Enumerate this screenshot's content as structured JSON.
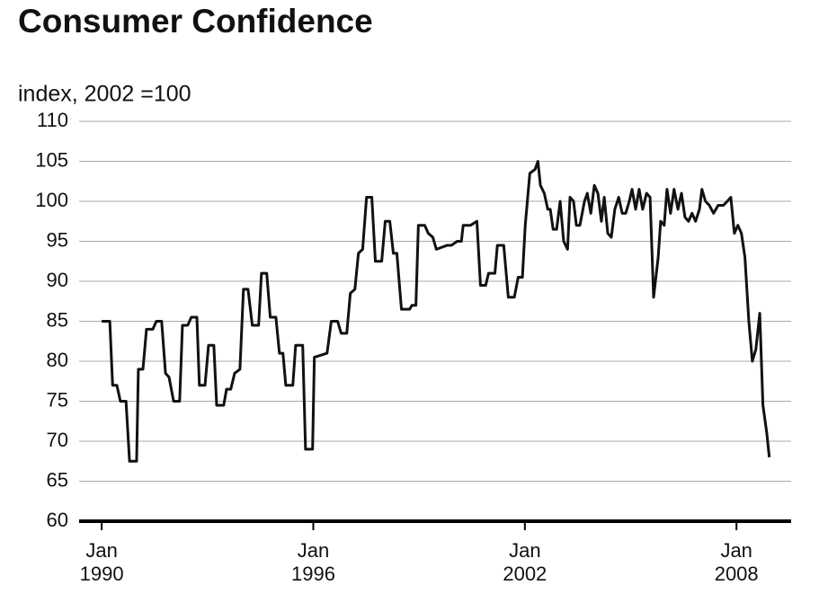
{
  "chart_data": {
    "type": "line",
    "title": "Consumer Confidence",
    "y_label": "index, 2002 =100",
    "color": "#111111",
    "grid": true,
    "xlim": [
      1989.36,
      2009.55
    ],
    "ylim": [
      60,
      110
    ],
    "yticks": [
      60,
      65,
      70,
      75,
      80,
      85,
      90,
      95,
      100,
      105,
      110
    ],
    "xticks": [
      {
        "value": 1990,
        "label": "Jan 1990"
      },
      {
        "value": 1996,
        "label": "Jan 1996"
      },
      {
        "value": 2002,
        "label": "Jan 2002"
      },
      {
        "value": 2008,
        "label": "Jan 2008"
      }
    ],
    "x": [
      1990.0,
      1990.23,
      1990.31,
      1990.43,
      1990.53,
      1990.69,
      1990.79,
      1990.99,
      1991.04,
      1991.17,
      1991.27,
      1991.45,
      1991.55,
      1991.7,
      1991.81,
      1991.91,
      1992.04,
      1992.21,
      1992.29,
      1992.44,
      1992.54,
      1992.7,
      1992.77,
      1992.93,
      1993.03,
      1993.18,
      1993.26,
      1993.46,
      1993.54,
      1993.66,
      1993.77,
      1993.92,
      1994.02,
      1994.15,
      1994.27,
      1994.45,
      1994.53,
      1994.68,
      1994.78,
      1994.94,
      1995.04,
      1995.14,
      1995.22,
      1995.42,
      1995.5,
      1995.7,
      1995.78,
      1995.98,
      1996.03,
      1996.39,
      1996.51,
      1996.69,
      1996.79,
      1996.95,
      1997.05,
      1997.18,
      1997.28,
      1997.4,
      1997.51,
      1997.66,
      1997.76,
      1997.94,
      1998.04,
      1998.17,
      1998.27,
      1998.37,
      1998.5,
      1998.73,
      1998.8,
      1998.91,
      1998.98,
      1999.16,
      1999.26,
      1999.39,
      1999.49,
      1999.8,
      1999.92,
      2000.08,
      2000.2,
      2000.25,
      2000.46,
      2000.64,
      2000.74,
      2000.89,
      2000.97,
      2001.15,
      2001.22,
      2001.4,
      2001.53,
      2001.7,
      2001.81,
      2001.93,
      2002.01,
      2002.14,
      2002.29,
      2002.37,
      2002.44,
      2002.55,
      2002.65,
      2002.72,
      2002.8,
      2002.9,
      2003.0,
      2003.1,
      2003.21,
      2003.28,
      2003.38,
      2003.46,
      2003.56,
      2003.69,
      2003.77,
      2003.87,
      2003.97,
      2004.07,
      2004.17,
      2004.25,
      2004.35,
      2004.45,
      2004.55,
      2004.66,
      2004.76,
      2004.86,
      2004.96,
      2005.04,
      2005.14,
      2005.24,
      2005.34,
      2005.45,
      2005.55,
      2005.65,
      2005.78,
      2005.85,
      2005.95,
      2006.03,
      2006.13,
      2006.23,
      2006.34,
      2006.44,
      2006.54,
      2006.64,
      2006.74,
      2006.84,
      2006.95,
      2007.02,
      2007.12,
      2007.23,
      2007.35,
      2007.48,
      2007.63,
      2007.74,
      2007.84,
      2007.94,
      2008.04,
      2008.14,
      2008.24,
      2008.35,
      2008.45,
      2008.55,
      2008.66,
      2008.75,
      2008.86,
      2008.93
    ],
    "values": [
      85,
      85,
      77,
      77,
      75,
      75,
      67.5,
      67.5,
      79,
      79,
      84,
      84,
      85,
      85,
      78.5,
      78,
      75,
      75,
      84.5,
      84.5,
      85.5,
      85.5,
      77,
      77,
      82,
      82,
      74.5,
      74.5,
      76.5,
      76.5,
      78.5,
      79,
      89,
      89,
      84.5,
      84.5,
      91,
      91,
      85.5,
      85.5,
      81,
      81,
      77,
      77,
      82,
      82,
      69,
      69,
      80.5,
      81,
      85,
      85,
      83.5,
      83.5,
      88.5,
      89,
      93.5,
      94,
      100.5,
      100.5,
      92.5,
      92.5,
      97.5,
      97.5,
      93.5,
      93.5,
      86.5,
      86.5,
      87,
      87,
      97,
      97,
      96,
      95.5,
      94,
      94.5,
      94.5,
      95,
      95,
      97,
      97,
      97.5,
      89.5,
      89.5,
      91,
      91,
      94.5,
      94.5,
      88,
      88,
      90.5,
      90.5,
      97,
      103.5,
      104,
      105,
      102,
      101,
      99,
      99,
      96.5,
      96.5,
      100,
      95,
      94,
      100.5,
      100,
      97,
      97,
      100,
      101,
      98.5,
      102,
      101,
      97.5,
      100.5,
      96,
      95.5,
      99,
      100.5,
      98.5,
      98.5,
      100,
      101.5,
      99,
      101.5,
      99,
      101,
      100.5,
      88,
      93,
      97.5,
      97,
      101.5,
      98.5,
      101.5,
      99,
      101,
      98,
      97.5,
      98.5,
      97.5,
      99,
      101.5,
      100,
      99.5,
      98.5,
      99.5,
      99.5,
      100,
      100.5,
      96,
      97,
      96,
      93,
      85,
      80,
      81.5,
      86,
      74.5,
      71,
      68
    ]
  }
}
